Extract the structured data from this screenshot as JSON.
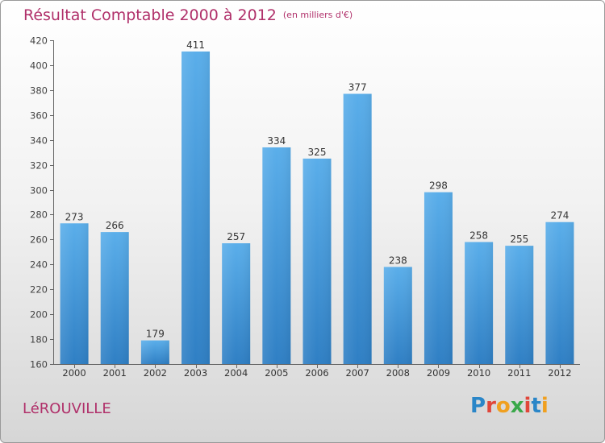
{
  "title": "Résultat Comptable 2000 à 2012",
  "unit_label": "(en milliers d'€)",
  "town": "LéROUVILLE",
  "logo_text": "Proxiti",
  "colors": {
    "title": "#b0306a",
    "bar_top": "#5aaeea",
    "bar_bottom": "#2f7fc4",
    "axis": "#555555"
  },
  "chart_data": {
    "type": "bar",
    "title": "Résultat Comptable 2000 à 2012",
    "subtitle": "(en milliers d'€)",
    "xlabel": "",
    "ylabel": "",
    "categories": [
      "2000",
      "2001",
      "2002",
      "2003",
      "2004",
      "2005",
      "2006",
      "2007",
      "2008",
      "2009",
      "2010",
      "2011",
      "2012"
    ],
    "values": [
      273,
      266,
      179,
      411,
      257,
      334,
      325,
      377,
      238,
      298,
      258,
      255,
      274
    ],
    "ylim": [
      160,
      420
    ],
    "yticks": [
      160,
      180,
      200,
      220,
      240,
      260,
      280,
      300,
      320,
      340,
      360,
      380,
      400,
      420
    ],
    "grid": false,
    "legend": "none"
  }
}
